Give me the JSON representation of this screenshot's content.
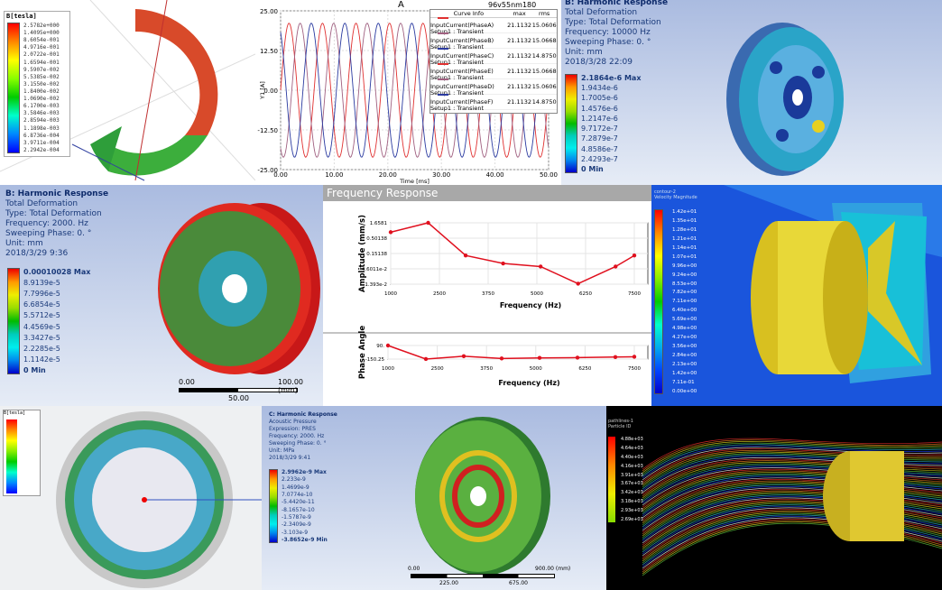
{
  "magnetic_panel": {
    "legend_title": "B[tesla]",
    "legend_values": [
      "2.5782e+000",
      "1.4095e+000",
      "8.6054e-001",
      "4.9716e-001",
      "2.0722e-001",
      "1.6594e-001",
      "9.5907e-002",
      "5.5385e-002",
      "3.1550e-002",
      "1.8400e-002",
      "1.0690e-002",
      "6.1700e-003",
      "3.5846e-003",
      "2.8594e-003",
      "1.1898e-003",
      "6.8736e-004",
      "3.9711e-004",
      "2.2942e-004"
    ]
  },
  "current_chart": {
    "title": "A",
    "project_label": "96v55nm180",
    "legend_headers": [
      "Curve Info",
      "max",
      "rms"
    ],
    "legend_rows": [
      {
        "name": "InputCurrent(PhaseA)",
        "setup": "Setup1 : Transient",
        "max": "21.1132",
        "rms": "15.0606",
        "color": "#e03030"
      },
      {
        "name": "InputCurrent(PhaseB)",
        "setup": "Setup1 : Transient",
        "max": "21.1132",
        "rms": "15.0668",
        "color": "#a06080"
      },
      {
        "name": "InputCurrent(PhaseC)",
        "setup": "Setup1 : Transient",
        "max": "21.1132",
        "rms": "14.8750",
        "color": "#2a3aa0"
      },
      {
        "name": "InputCurrent(PhaseE)",
        "setup": "Setup1 : Transient",
        "max": "21.1132",
        "rms": "15.0668",
        "color": "#e03030"
      },
      {
        "name": "InputCurrent(PhaseD)",
        "setup": "Setup1 : Transient",
        "max": "21.1132",
        "rms": "15.0606",
        "color": "#a06080"
      },
      {
        "name": "InputCurrent(PhaseF)",
        "setup": "Setup1 : Transient",
        "max": "21.1132",
        "rms": "14.8750",
        "color": "#2a3aa0"
      }
    ]
  },
  "harmonic_top": {
    "title": "B: Harmonic Response",
    "lines": [
      "Total Deformation",
      "Type: Total Deformation",
      "Frequency: 10000 Hz",
      "Sweeping Phase: 0. °",
      "Unit: mm",
      "2018/3/28 22:09"
    ],
    "legend_values": [
      "2.1864e-6 Max",
      "1.9434e-6",
      "1.7005e-6",
      "1.4576e-6",
      "1.2147e-6",
      "9.7172e-7",
      "7.2879e-7",
      "4.8586e-7",
      "2.4293e-7",
      "0 Min"
    ]
  },
  "harmonic_mid": {
    "title": "B: Harmonic Response",
    "lines": [
      "Total Deformation",
      "Type: Total Deformation",
      "Frequency: 2000. Hz",
      "Sweeping Phase: 0. °",
      "Unit: mm",
      "2018/3/29 9:36"
    ],
    "legend_values": [
      "0.00010028 Max",
      "8.9139e-5",
      "7.7996e-5",
      "6.6854e-5",
      "5.5712e-5",
      "4.4569e-5",
      "3.3427e-5",
      "2.2285e-5",
      "1.1142e-5",
      "0 Min"
    ],
    "scale": {
      "left": "0.00",
      "right": "100.00 (mm)",
      "mid": "50.00"
    }
  },
  "frequency_response": {
    "header": "Frequency Response"
  },
  "cfd_panel": {
    "legend_title": "contour-2",
    "legend_subtitle": "Velocity Magnitude",
    "legend_values": [
      "1.42e+01",
      "1.35e+01",
      "1.28e+01",
      "1.21e+01",
      "1.14e+01",
      "1.07e+01",
      "9.96e+00",
      "9.24e+00",
      "8.53e+00",
      "7.82e+00",
      "7.11e+00",
      "6.40e+00",
      "5.69e+00",
      "4.98e+00",
      "4.27e+00",
      "3.56e+00",
      "2.84e+00",
      "2.13e+00",
      "1.42e+00",
      "7.11e-01",
      "0.00e+00"
    ]
  },
  "ring_panel": {
    "legend_title": "B[tesla]"
  },
  "harmonic_bottom": {
    "title": "C: Harmonic Response",
    "lines": [
      "Acoustic Pressure",
      "Expression: PRES",
      "Frequency: 2000. Hz",
      "Sweeping Phase: 0. °",
      "Unit: MPa",
      "2018/3/29 9:41"
    ],
    "legend_values": [
      "2.9962e-9 Max",
      "2.233e-9",
      "1.4699e-9",
      "7.0774e-10",
      "-5.4420e-11",
      "-8.1657e-10",
      "-1.5787e-9",
      "-2.3409e-9",
      "-3.103e-9",
      "-3.8652e-9 Min"
    ],
    "scale": {
      "left": "0.00",
      "right": "900.00 (mm)",
      "mid1": "225.00",
      "mid2": "675.00"
    }
  },
  "streamline_panel": {
    "legend_title": "pathlines-1",
    "legend_subtitle": "Particle ID",
    "legend_values": [
      "4.88e+03",
      "4.64e+03",
      "4.40e+03",
      "4.16e+03",
      "3.91e+03",
      "3.67e+03",
      "3.42e+03",
      "3.18e+03",
      "2.93e+03",
      "2.69e+03"
    ]
  },
  "chart_data": [
    {
      "type": "line",
      "title": "A",
      "xlabel": "Time [ms]",
      "ylabel": "Y1 [A]",
      "xlim": [
        0,
        50
      ],
      "ylim": [
        -25,
        25
      ],
      "x_ticks": [
        "0.00",
        "10.00",
        "20.00",
        "30.00",
        "40.00",
        "50.00"
      ],
      "y_ticks": [
        "25.00",
        "12.50",
        "0.00",
        "-12.50",
        "-25.00"
      ],
      "grid": true,
      "legend": "top-right",
      "waveform": "sine",
      "amplitude": 21.1132,
      "period_ms": 6.25,
      "series": [
        {
          "name": "InputCurrent(PhaseA)",
          "phase_deg": 0,
          "color": "#e03030"
        },
        {
          "name": "InputCurrent(PhaseB)",
          "phase_deg": 120,
          "color": "#a06080"
        },
        {
          "name": "InputCurrent(PhaseC)",
          "phase_deg": 240,
          "color": "#2a3aa0"
        },
        {
          "name": "InputCurrent(PhaseE)",
          "phase_deg": 0,
          "color": "#e03030"
        },
        {
          "name": "InputCurrent(PhaseD)",
          "phase_deg": 120,
          "color": "#a06080"
        },
        {
          "name": "InputCurrent(PhaseF)",
          "phase_deg": 240,
          "color": "#2a3aa0"
        }
      ]
    },
    {
      "type": "line",
      "xlabel": "Frequency (Hz)",
      "ylabel": "Amplitude (mm/s)",
      "yscale": "log",
      "xlim": [
        1000,
        7500
      ],
      "ylim": [
        0.01393,
        1.6581
      ],
      "x_ticks": [
        "1000",
        "2500",
        "3750",
        "5000",
        "6250",
        "7500"
      ],
      "y_ticks": [
        "1.6581",
        "0.50138",
        "0.15138",
        "4.6011e-2",
        "1.393e-2"
      ],
      "grid": true,
      "x": [
        1000,
        2000,
        3000,
        4000,
        5000,
        6000,
        7000,
        7500
      ],
      "values": [
        0.8,
        1.6581,
        0.13,
        0.07,
        0.055,
        0.0145,
        0.055,
        0.13
      ],
      "color": "#e0101e"
    },
    {
      "type": "line",
      "xlabel": "Frequency (Hz)",
      "ylabel": "Phase Angle",
      "xlim": [
        1000,
        7500
      ],
      "ylim": [
        -150.25,
        90
      ],
      "x_ticks": [
        "1000",
        "2500",
        "3750",
        "5000",
        "6250",
        "7500"
      ],
      "y_ticks": [
        "90.",
        "-150.25"
      ],
      "x": [
        1000,
        2000,
        3000,
        4000,
        5000,
        6000,
        7000,
        7500
      ],
      "values": [
        90,
        -150,
        -100,
        -140,
        -130,
        -125,
        -115,
        -110
      ],
      "color": "#e0101e"
    }
  ]
}
